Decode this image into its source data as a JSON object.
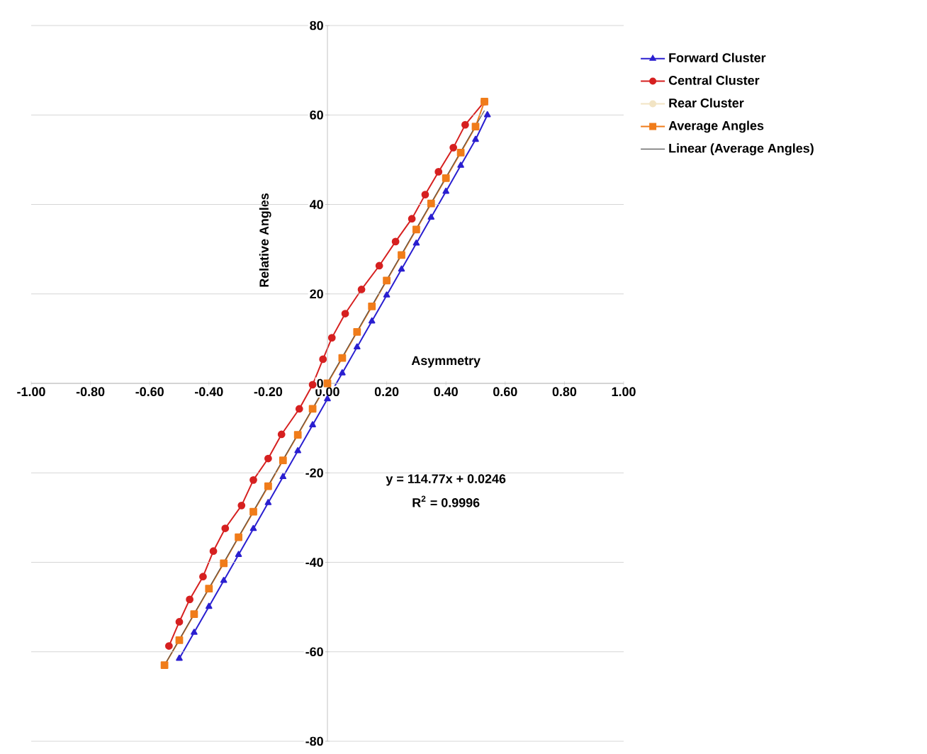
{
  "chart_data": {
    "type": "line",
    "xlabel": "Asymmetry",
    "ylabel": "Relative Angles",
    "xlim": [
      -1,
      1
    ],
    "ylim": [
      -80,
      80
    ],
    "xticks": [
      {
        "value": -1,
        "label": "-1.00"
      },
      {
        "value": -0.8,
        "label": "-0.80"
      },
      {
        "value": -0.6,
        "label": "-0.60"
      },
      {
        "value": -0.4,
        "label": "-0.40"
      },
      {
        "value": -0.2,
        "label": "-0.20"
      },
      {
        "value": 0,
        "label": "0.00"
      },
      {
        "value": 0.2,
        "label": "0.20"
      },
      {
        "value": 0.4,
        "label": "0.40"
      },
      {
        "value": 0.6,
        "label": "0.60"
      },
      {
        "value": 0.8,
        "label": "0.80"
      },
      {
        "value": 1,
        "label": "1.00"
      }
    ],
    "yticks": [
      -80,
      -60,
      -40,
      -20,
      0,
      20,
      40,
      60,
      80
    ],
    "grid": "y",
    "legend": "right",
    "annotations": [
      "y = 114.77x + 0.0246",
      "R$^{2}$ = 0.9996"
    ],
    "series": [
      {
        "name": "Forward Cluster",
        "color": "#2a1fd0",
        "marker": "triangle",
        "x": [
          -0.5,
          -0.45,
          -0.4,
          -0.35,
          -0.3,
          -0.25,
          -0.2,
          -0.15,
          -0.1,
          -0.05,
          0,
          0.05,
          0.1,
          0.15,
          0.2,
          0.25,
          0.3,
          0.35,
          0.4,
          0.45,
          0.5,
          0.54
        ],
        "values": [
          -61.5,
          -55.7,
          -49.9,
          -44.1,
          -38.3,
          -32.5,
          -26.7,
          -20.9,
          -15.1,
          -9.3,
          -3.5,
          2.3,
          8.1,
          13.9,
          19.7,
          25.5,
          31.3,
          37.1,
          42.9,
          48.7,
          54.5,
          60
        ]
      },
      {
        "name": "Central Cluster",
        "color": "#d62020",
        "marker": "circle",
        "x": [
          -0.535,
          -0.5,
          -0.465,
          -0.42,
          -0.385,
          -0.345,
          -0.29,
          -0.25,
          -0.2,
          -0.155,
          -0.095,
          -0.05,
          -0.015,
          0.015,
          0.06,
          0.115,
          0.175,
          0.23,
          0.285,
          0.33,
          0.375,
          0.425,
          0.465,
          0.53
        ],
        "values": [
          -58.7,
          -53.3,
          -48.3,
          -43.2,
          -37.5,
          -32.4,
          -27.3,
          -21.6,
          -16.8,
          -11.4,
          -5.7,
          -0.3,
          5.4,
          10.2,
          15.6,
          21,
          26.3,
          31.7,
          36.8,
          42.2,
          47.3,
          52.7,
          57.8,
          63
        ]
      },
      {
        "name": "Rear Cluster",
        "color": "#f2e4c4",
        "marker": "circle"
      },
      {
        "name": "Average Angles",
        "color": "#f07c1a",
        "marker": "square",
        "x": [
          -0.55,
          -0.5,
          -0.45,
          -0.4,
          -0.35,
          -0.3,
          -0.25,
          -0.2,
          -0.15,
          -0.1,
          -0.05,
          0,
          0.05,
          0.1,
          0.15,
          0.2,
          0.25,
          0.3,
          0.35,
          0.4,
          0.45,
          0.5,
          0.53
        ],
        "values": [
          -63,
          -57.4,
          -51.6,
          -45.9,
          -40.2,
          -34.4,
          -28.7,
          -23,
          -17.2,
          -11.5,
          -5.7,
          0,
          5.7,
          11.5,
          17.2,
          23,
          28.7,
          34.4,
          40.2,
          45.9,
          51.6,
          57.4,
          63
        ]
      },
      {
        "name": "Linear (Average Angles)",
        "color": "#555555",
        "marker": "none",
        "x": [
          -0.55,
          0.53
        ],
        "values": [
          -63,
          61
        ]
      }
    ]
  }
}
